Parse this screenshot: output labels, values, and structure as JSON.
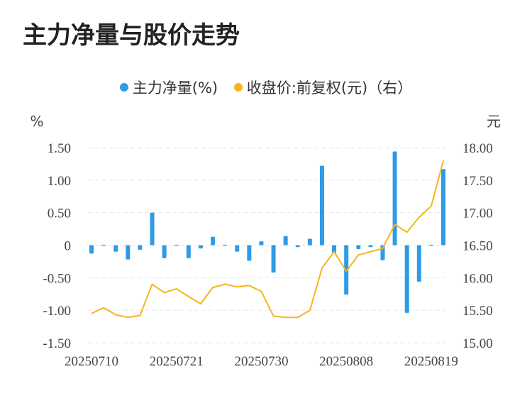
{
  "title": "主力净量与股价走势",
  "legend": {
    "series1": "主力净量(%)",
    "series2": "收盘价:前复权(元)（右）"
  },
  "colors": {
    "bar": "#2e9be8",
    "line": "#f5b51b",
    "grid": "#e6e6e6"
  },
  "chart_data": {
    "type": "bar+line",
    "title": "主力净量与股价走势",
    "left_unit": "%",
    "right_unit": "元",
    "left_axis": {
      "min": -1.5,
      "max": 1.5,
      "ticks": [
        "1.50",
        "1.00",
        "0.50",
        "0",
        "-0.50",
        "-1.00",
        "-1.50"
      ]
    },
    "right_axis": {
      "min": 15.0,
      "max": 18.0,
      "ticks": [
        "18.00",
        "17.50",
        "17.00",
        "16.50",
        "16.00",
        "15.50",
        "15.00"
      ]
    },
    "x_ticks": [
      {
        "index": 0,
        "label": "20250710"
      },
      {
        "index": 7,
        "label": "20250721"
      },
      {
        "index": 14,
        "label": "20250730"
      },
      {
        "index": 21,
        "label": "20250808"
      },
      {
        "index": 28,
        "label": "20250819"
      }
    ],
    "series": [
      {
        "name": "主力净量(%)",
        "axis": "left",
        "type": "bar",
        "values": [
          -0.13,
          0.01,
          -0.1,
          -0.22,
          -0.07,
          0.5,
          -0.2,
          -0.01,
          -0.2,
          -0.05,
          0.13,
          0.0,
          -0.1,
          -0.24,
          0.06,
          -0.42,
          0.14,
          -0.03,
          0.1,
          1.22,
          -0.12,
          -0.76,
          -0.06,
          -0.03,
          -0.23,
          1.44,
          -1.04,
          -0.56,
          -0.01,
          1.17
        ]
      },
      {
        "name": "收盘价:前复权(元)（右）",
        "axis": "right",
        "type": "line",
        "values": [
          15.45,
          15.54,
          15.43,
          15.39,
          15.42,
          15.9,
          15.77,
          15.83,
          15.71,
          15.6,
          15.85,
          15.9,
          15.86,
          15.88,
          15.79,
          15.41,
          15.39,
          15.39,
          15.5,
          16.15,
          16.4,
          16.1,
          16.35,
          16.4,
          16.45,
          16.82,
          16.7,
          16.93,
          17.1,
          17.8
        ]
      }
    ]
  }
}
